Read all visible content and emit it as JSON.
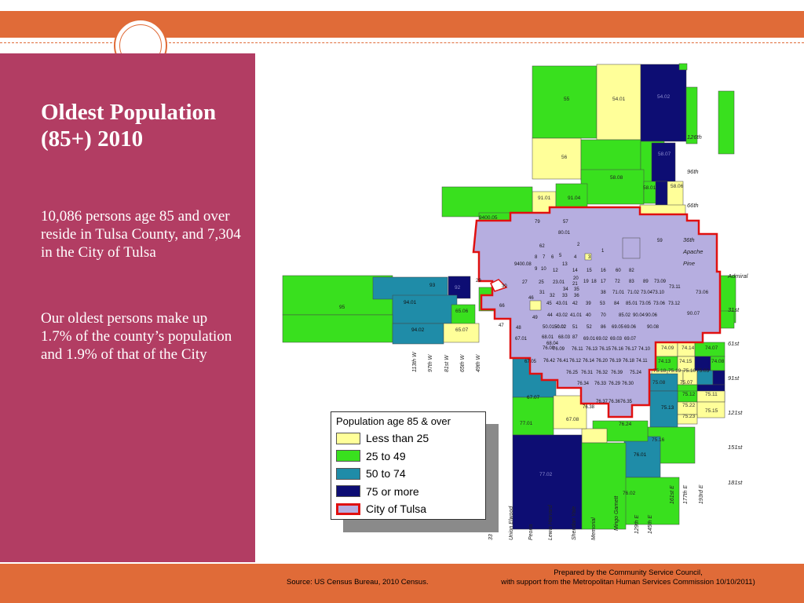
{
  "title": "Oldest Population (85+) 2010",
  "para1": "10,086 persons age 85 and over reside in Tulsa County, and 7,304 in the City of Tulsa",
  "para2": "Our oldest persons make up 1.7% of the county’s population and 1.9% of that of the City",
  "footer": {
    "source": "Source:  US Census Bureau, 2010 Census.",
    "prepared_line1": "Prepared by the Community Service Council,",
    "prepared_line2": "with support from the Metropolitan Human Services Commission 10/10/2011)"
  },
  "legend": {
    "title": "Population age 85 & over",
    "items": [
      {
        "label": "Less than 25",
        "color": "#FFFF99"
      },
      {
        "label": "25 to 49",
        "color": "#39E01E"
      },
      {
        "label": "50 to 74",
        "color": "#1F8CA8"
      },
      {
        "label": "75 or more",
        "color": "#0D0D73"
      },
      {
        "label": "City of Tulsa",
        "color": "#B6AEE0"
      }
    ]
  },
  "colors": {
    "accent": "#E06B38",
    "panel": "#B23D63",
    "city_outline": "#E01010"
  },
  "roads_ns": [
    "33",
    "Union Elwood",
    "Peoria",
    "Lewis Harvard",
    "Sheridan Yale",
    "Memorial",
    "Mingo Garnett",
    "129th E",
    "145th E",
    "161st E",
    "177th E",
    "193rd E"
  ],
  "roads_ns_west": [
    "113th W",
    "97th W",
    "81st W",
    "65th W",
    "49th W"
  ],
  "roads_ew": [
    "126th",
    "96th",
    "66th",
    "36th",
    "Apache",
    "Pine",
    "Admiral",
    "31st",
    "61st",
    "91st",
    "121st",
    "151st",
    "181st"
  ],
  "tracts": [
    {
      "id": "55",
      "fill": "green",
      "t": "#333"
    },
    {
      "id": "54.01",
      "fill": "yellow",
      "t": "#333"
    },
    {
      "id": "54.02",
      "fill": "navy",
      "t": "#555"
    },
    {
      "id": "56",
      "fill": "yellow",
      "t": "#333"
    },
    {
      "id": "58.07",
      "fill": "navy",
      "t": "#555"
    },
    {
      "id": "58.08",
      "fill": "green",
      "t": "#333"
    },
    {
      "id": "58.01",
      "fill": "green",
      "t": "#333"
    },
    {
      "id": "58.06",
      "fill": "yellow",
      "t": "#333"
    },
    {
      "id": "91.01",
      "fill": "yellow",
      "t": "#333"
    },
    {
      "id": "91.04",
      "fill": "green",
      "t": "#333"
    },
    {
      "id": "9400.05",
      "fill": "green",
      "t": "#333"
    },
    {
      "id": "93",
      "fill": "teal",
      "t": "#222"
    },
    {
      "id": "92",
      "fill": "navy",
      "t": "#555"
    },
    {
      "id": "94.01",
      "fill": "teal",
      "t": "#222"
    },
    {
      "id": "95",
      "fill": "green",
      "t": "#333"
    },
    {
      "id": "65.06",
      "fill": "green",
      "t": "#333"
    },
    {
      "id": "94.02",
      "fill": "teal",
      "t": "#222"
    },
    {
      "id": "65.07",
      "fill": "yellow",
      "t": "#333"
    },
    {
      "id": "67.07",
      "fill": "teal",
      "t": "#222"
    },
    {
      "id": "77.01",
      "fill": "green",
      "t": "#333"
    },
    {
      "id": "67.08",
      "fill": "yellow",
      "t": "#333"
    },
    {
      "id": "77.02",
      "fill": "navy",
      "t": "#555"
    },
    {
      "id": "76.24",
      "fill": "green",
      "t": "#333"
    },
    {
      "id": "75.16",
      "fill": "green",
      "t": "#333"
    },
    {
      "id": "76.01",
      "fill": "teal",
      "t": "#222"
    },
    {
      "id": "76.02",
      "fill": "green",
      "t": "#333"
    },
    {
      "id": "75.13",
      "fill": "teal",
      "t": "#222"
    },
    {
      "id": "75.22",
      "fill": "yellow",
      "t": "#333"
    },
    {
      "id": "75.15",
      "fill": "yellow",
      "t": "#333"
    },
    {
      "id": "75.23",
      "fill": "yellow",
      "t": "#333"
    },
    {
      "id": "75.12",
      "fill": "green",
      "t": "#333"
    },
    {
      "id": "75.11",
      "fill": "yellow",
      "t": "#333"
    },
    {
      "id": "74.09",
      "fill": "yellow",
      "t": "#333"
    },
    {
      "id": "74.14",
      "fill": "yellow",
      "t": "#333"
    },
    {
      "id": "74.07",
      "fill": "green",
      "t": "#333"
    },
    {
      "id": "74.13",
      "fill": "green",
      "t": "#333"
    },
    {
      "id": "74.15",
      "fill": "yellow",
      "t": "#333"
    },
    {
      "id": "74.08",
      "fill": "green",
      "t": "#333"
    },
    {
      "id": "75.18",
      "fill": "yellow",
      "t": "#333"
    },
    {
      "id": "75.19",
      "fill": "yellow",
      "t": "#333"
    },
    {
      "id": "75.10",
      "fill": "yellow",
      "t": "#333"
    },
    {
      "id": "75.03",
      "fill": "green",
      "t": "#333"
    },
    {
      "id": "75.08",
      "fill": "green",
      "t": "#333"
    },
    {
      "id": "75.07",
      "fill": "green",
      "t": "#333"
    },
    {
      "id": "90.07",
      "fill": "green",
      "t": "#333"
    },
    {
      "id": "73.06",
      "fill": "green",
      "t": "#333"
    }
  ],
  "city_labels": [
    "79",
    "57",
    "50.02",
    "80.01",
    "62",
    "2",
    "1",
    "59",
    "8",
    "7",
    "6",
    "5",
    "4",
    "3",
    "9400.08",
    "9",
    "10",
    "12",
    "13",
    "14",
    "15",
    "16",
    "60",
    "82",
    "20",
    "21",
    "19",
    "18",
    "17",
    "72",
    "83",
    "89",
    "73.09",
    "73.11",
    "27",
    "25",
    "23.01",
    "34",
    "35",
    "31",
    "32",
    "33",
    "36",
    "38",
    "71.01",
    "71.02",
    "73.04",
    "73.10",
    "45",
    "43.01",
    "42",
    "39",
    "53",
    "84",
    "85.01",
    "73.05",
    "73.06",
    "73.12",
    "44",
    "43.02",
    "41.01",
    "40",
    "70",
    "85.02",
    "90.04",
    "90.06",
    "48",
    "50.01",
    "50.02",
    "51",
    "52",
    "86",
    "69.05",
    "69.06",
    "90.08",
    "67.01",
    "68.01",
    "68.03",
    "87",
    "69.01",
    "69.02",
    "69.03",
    "69.07",
    "76.08",
    "76.09",
    "76.11",
    "76.13",
    "76.15",
    "76.16",
    "76.17",
    "74.10",
    "67.05",
    "76.42",
    "76.41",
    "76.12",
    "76.14",
    "76.20",
    "76.19",
    "76.18",
    "74.11",
    "76.25",
    "76.31",
    "76.32",
    "76.39",
    "75.24",
    "76.34",
    "76.33",
    "76.29",
    "76.30",
    "76.37",
    "76.36",
    "76.35",
    "76.38",
    "29",
    "30",
    "46",
    "66",
    "47",
    "49",
    "68.04"
  ]
}
